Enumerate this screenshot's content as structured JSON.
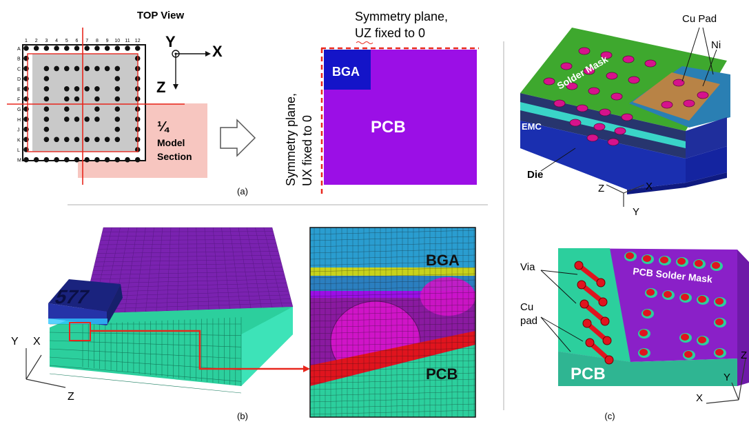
{
  "panel_a": {
    "top_view_title": "TOP View",
    "columns": [
      "1",
      "2",
      "3",
      "4",
      "5",
      "6",
      "7",
      "8",
      "9",
      "10",
      "11",
      "12"
    ],
    "rows": [
      "A",
      "B",
      "C",
      "D",
      "E",
      "F",
      "G",
      "H",
      "J",
      "K",
      "L",
      "M"
    ],
    "quarter_symbol": "¼",
    "quarter_label_1": "Model",
    "quarter_label_2": "Section",
    "axis_y": "Y",
    "axis_x": "X",
    "axis_z": "Z",
    "symmetry_top_line1": "Symmetry plane,",
    "symmetry_top_line2": "UZ fixed to 0",
    "symmetry_side_line1": "Symmetry plane,",
    "symmetry_side_line2": "UX fixed to 0",
    "bga_label": "BGA",
    "pcb_label": "PCB",
    "caption": "(a)"
  },
  "panel_b": {
    "axis_y": "Y",
    "axis_x": "X",
    "axis_z": "Z",
    "zoom_bga_label": "BGA",
    "zoom_pcb_label": "PCB",
    "caption": "(b)"
  },
  "panel_c": {
    "cu_pad_label": "Cu Pad",
    "ni_label": "Ni",
    "solder_mask_label": "Solder Mask",
    "emc_label": "EMC",
    "die_label": "Die",
    "axis_z": "Z",
    "axis_x": "X",
    "axis_y": "Y",
    "via_label": "Via",
    "cu_pad_line1": "Cu",
    "cu_pad_line2": "pad",
    "pcb_solder_mask_label": "PCB Solder Mask",
    "pcb_label": "PCB",
    "axis2_z": "Z",
    "axis2_y": "Y",
    "axis2_x": "X",
    "caption": "(c)"
  },
  "colors": {
    "pcb_purple": "#9b0fe6",
    "bga_blue": "#1414c8",
    "solder_mask_green": "#3ea82e",
    "emc_blue": "#1a2fb0",
    "mesh_teal": "#34e0b4",
    "pad_magenta": "#d6128c",
    "symmetry_red": "#e8261c",
    "quarter_pink": "#f7c6c0"
  }
}
